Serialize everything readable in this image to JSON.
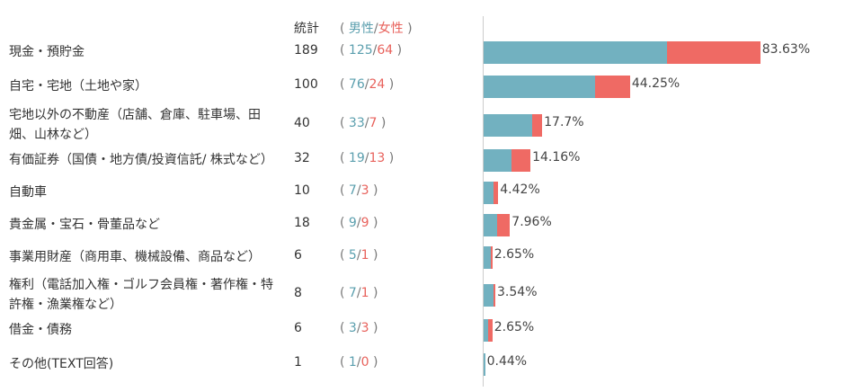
{
  "chart_data": {
    "type": "bar",
    "header": {
      "total": "統計",
      "open": "(",
      "male": "男性",
      "sep": "/",
      "female": "女性",
      "close": ")"
    },
    "categories": [
      "現金・預貯金",
      "自宅・宅地（土地や家）",
      "宅地以外の不動産（店舗、倉庫、駐車場、田畑、山林など）",
      "有価証券（国債・地方債/投資信託/ 株式など）",
      "自動車",
      "貴金属・宝石・骨董品など",
      "事業用財産（商用車、機械設備、商品など）",
      "権利（電話加入権・ゴルフ会員権・著作権・特許権・漁業権など）",
      "借金・債務",
      "その他(TEXT回答)"
    ],
    "totals": [
      189,
      100,
      40,
      32,
      10,
      18,
      6,
      8,
      6,
      1
    ],
    "series": [
      {
        "name": "男性",
        "color": "#72b1c0",
        "values": [
          125,
          76,
          33,
          19,
          7,
          9,
          5,
          7,
          3,
          1
        ]
      },
      {
        "name": "女性",
        "color": "#ef6a64",
        "values": [
          64,
          24,
          7,
          13,
          3,
          9,
          1,
          1,
          3,
          0
        ]
      }
    ],
    "percent": {
      "values": [
        83.63,
        44.25,
        17.7,
        14.16,
        4.42,
        7.96,
        2.65,
        3.54,
        2.65,
        0.44
      ],
      "value_labels": [
        "83.63%",
        "44.25%",
        "17.7%",
        "14.16%",
        "4.42%",
        "7.96%",
        "2.65%",
        "3.54%",
        "2.65%",
        "0.44%"
      ]
    }
  }
}
